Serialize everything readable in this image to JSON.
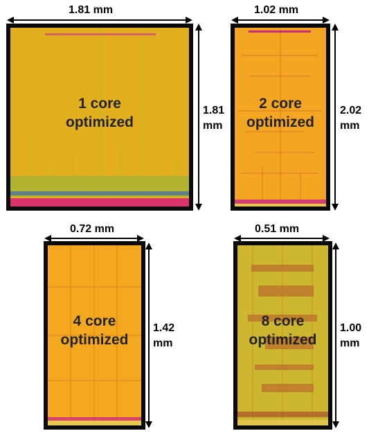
{
  "panels": [
    {
      "id": "p1",
      "width_label": "1.81 mm",
      "height_value": "1.81",
      "height_unit": "mm",
      "line1": "1 core",
      "line2": "optimized"
    },
    {
      "id": "p2",
      "width_label": "1.02 mm",
      "height_value": "2.02",
      "height_unit": "mm",
      "line1": "2 core",
      "line2": "optimized"
    },
    {
      "id": "p3",
      "width_label": "0.72 mm",
      "height_value": "1.42",
      "height_unit": "mm",
      "line1": "4 core",
      "line2": "optimized"
    },
    {
      "id": "p4",
      "width_label": "0.51 mm",
      "height_value": "1.00",
      "height_unit": "mm",
      "line1": "8 core",
      "line2": "optimized"
    }
  ]
}
